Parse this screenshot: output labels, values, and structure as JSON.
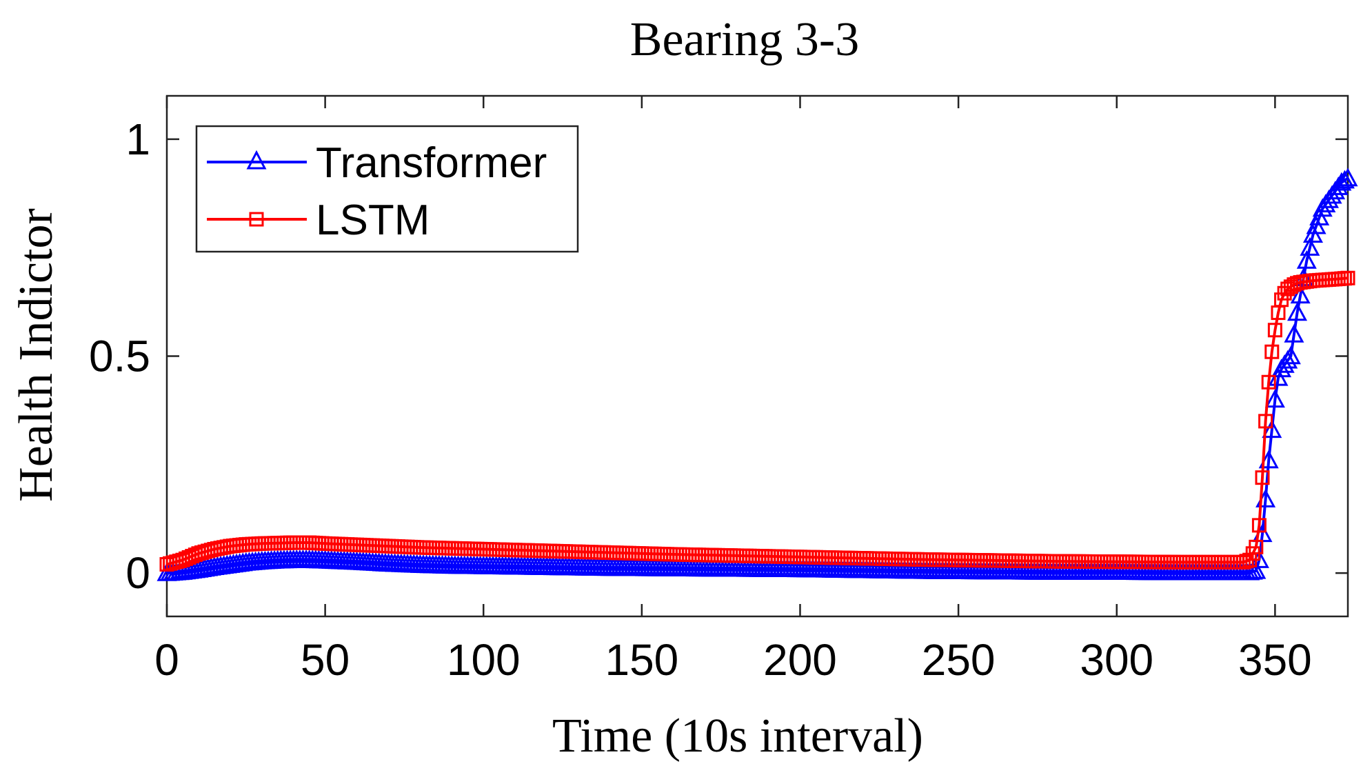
{
  "chart_data": {
    "type": "line",
    "title": "Bearing 3-3",
    "xlabel": "Time (10s interval)",
    "ylabel": "Health Indictor",
    "xlim": [
      0,
      373
    ],
    "ylim": [
      -0.1,
      1.1
    ],
    "xticks": [
      0,
      50,
      100,
      150,
      200,
      250,
      300,
      350
    ],
    "yticks": [
      0,
      0.5,
      1
    ],
    "ytick_labels": [
      "0",
      "0.5",
      "1"
    ],
    "grid": false,
    "legend": {
      "position": "top-left",
      "entries": [
        "Transformer",
        "LSTM"
      ]
    },
    "series": [
      {
        "name": "Transformer",
        "color": "#0000ff",
        "marker": "triangle",
        "x": [
          0,
          5,
          10,
          15,
          20,
          25,
          30,
          35,
          40,
          45,
          50,
          60,
          70,
          80,
          90,
          100,
          120,
          140,
          160,
          180,
          200,
          220,
          240,
          260,
          280,
          300,
          320,
          340,
          342,
          344,
          345,
          346,
          347,
          348,
          349,
          350,
          351,
          352,
          353,
          354,
          355,
          356,
          357,
          358,
          359,
          360,
          361,
          362,
          363,
          364,
          365,
          366,
          367,
          368,
          369,
          370,
          371,
          372,
          373
        ],
        "y": [
          0.0,
          0.003,
          0.008,
          0.014,
          0.019,
          0.024,
          0.027,
          0.029,
          0.03,
          0.03,
          0.029,
          0.026,
          0.022,
          0.019,
          0.017,
          0.016,
          0.014,
          0.012,
          0.011,
          0.01,
          0.009,
          0.007,
          0.005,
          0.004,
          0.003,
          0.003,
          0.002,
          0.002,
          0.002,
          0.005,
          0.03,
          0.09,
          0.17,
          0.26,
          0.33,
          0.4,
          0.45,
          0.47,
          0.48,
          0.49,
          0.5,
          0.55,
          0.6,
          0.64,
          0.68,
          0.72,
          0.75,
          0.78,
          0.8,
          0.82,
          0.84,
          0.85,
          0.86,
          0.87,
          0.88,
          0.89,
          0.9,
          0.905,
          0.91
        ]
      },
      {
        "name": "LSTM",
        "color": "#ff0000",
        "marker": "square",
        "x": [
          0,
          5,
          10,
          15,
          20,
          25,
          30,
          35,
          40,
          45,
          50,
          60,
          70,
          80,
          90,
          100,
          120,
          140,
          160,
          180,
          200,
          220,
          240,
          260,
          280,
          300,
          320,
          340,
          342,
          344,
          345,
          346,
          347,
          348,
          349,
          350,
          351,
          352,
          353,
          354,
          355,
          356,
          357,
          358,
          360,
          362,
          364,
          366,
          368,
          370,
          373
        ],
        "y": [
          0.02,
          0.03,
          0.045,
          0.055,
          0.062,
          0.066,
          0.068,
          0.069,
          0.07,
          0.07,
          0.068,
          0.065,
          0.062,
          0.059,
          0.057,
          0.055,
          0.051,
          0.047,
          0.043,
          0.04,
          0.037,
          0.034,
          0.031,
          0.029,
          0.027,
          0.026,
          0.025,
          0.025,
          0.03,
          0.06,
          0.11,
          0.22,
          0.35,
          0.44,
          0.51,
          0.56,
          0.6,
          0.63,
          0.645,
          0.655,
          0.66,
          0.665,
          0.668,
          0.67,
          0.672,
          0.674,
          0.675,
          0.676,
          0.677,
          0.678,
          0.68
        ]
      }
    ]
  }
}
